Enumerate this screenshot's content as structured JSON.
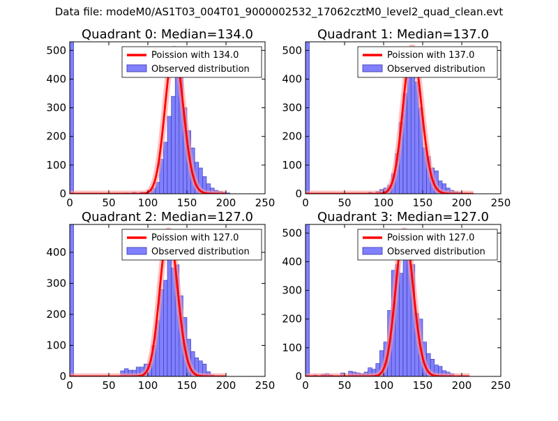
{
  "figure": {
    "suptitle": "Data file: modeM0/AS1T03_004T01_9000002532_17062cztM0_level2_quad_clean.evt"
  },
  "colors": {
    "bar_fill": "#8080ff",
    "bar_edge": "#3333aa",
    "poisson_line": "#ff0000",
    "poisson_fill": "#ff9a9a"
  },
  "chart_data": [
    {
      "type": "bar",
      "title": "Quadrant 0: Median=134.0",
      "xlabel": "",
      "ylabel": "",
      "xlim": [
        0,
        250
      ],
      "ylim": [
        0,
        530
      ],
      "xticks": [
        0,
        50,
        100,
        150,
        200,
        250
      ],
      "yticks": [
        0,
        100,
        200,
        300,
        400,
        500
      ],
      "bin_width": 5,
      "bins": [
        [
          0,
          530
        ],
        [
          70,
          3
        ],
        [
          80,
          5
        ],
        [
          90,
          5
        ],
        [
          95,
          3
        ],
        [
          100,
          12
        ],
        [
          105,
          20
        ],
        [
          110,
          40
        ],
        [
          115,
          120
        ],
        [
          120,
          180
        ],
        [
          125,
          270
        ],
        [
          130,
          340
        ],
        [
          135,
          450
        ],
        [
          140,
          440
        ],
        [
          145,
          300
        ],
        [
          150,
          220
        ],
        [
          155,
          160
        ],
        [
          160,
          110
        ],
        [
          165,
          90
        ],
        [
          170,
          60
        ],
        [
          175,
          35
        ],
        [
          180,
          20
        ],
        [
          185,
          12
        ],
        [
          190,
          8
        ],
        [
          195,
          5
        ],
        [
          200,
          3
        ]
      ],
      "poisson": {
        "mean": 134.0,
        "peak": 505,
        "xrange": [
          0,
          200
        ]
      },
      "legend": {
        "line": "Poission with 134.0",
        "bars": "Observed distribution",
        "location": "upper right"
      }
    },
    {
      "type": "bar",
      "title": "Quadrant 1: Median=137.0",
      "xlabel": "",
      "ylabel": "",
      "xlim": [
        0,
        250
      ],
      "ylim": [
        0,
        530
      ],
      "xticks": [
        0,
        50,
        100,
        150,
        200,
        250
      ],
      "yticks": [
        0,
        100,
        200,
        300,
        400,
        500
      ],
      "bin_width": 5,
      "bins": [
        [
          0,
          530
        ],
        [
          80,
          5
        ],
        [
          90,
          8
        ],
        [
          95,
          15
        ],
        [
          100,
          20
        ],
        [
          105,
          30
        ],
        [
          110,
          70
        ],
        [
          115,
          140
        ],
        [
          120,
          250
        ],
        [
          125,
          350
        ],
        [
          130,
          430
        ],
        [
          135,
          470
        ],
        [
          140,
          390
        ],
        [
          145,
          300
        ],
        [
          150,
          160
        ],
        [
          155,
          130
        ],
        [
          160,
          90
        ],
        [
          165,
          80
        ],
        [
          170,
          45
        ],
        [
          175,
          35
        ],
        [
          180,
          20
        ],
        [
          185,
          12
        ],
        [
          190,
          7
        ],
        [
          195,
          4
        ],
        [
          200,
          2
        ]
      ],
      "poisson": {
        "mean": 137.0,
        "peak": 510,
        "xrange": [
          0,
          215
        ]
      },
      "legend": {
        "line": "Poission with 137.0",
        "bars": "Observed distribution",
        "location": "upper right"
      }
    },
    {
      "type": "bar",
      "title": "Quadrant 2: Median=127.0",
      "xlabel": "",
      "ylabel": "",
      "xlim": [
        0,
        250
      ],
      "ylim": [
        0,
        490
      ],
      "xticks": [
        0,
        50,
        100,
        150,
        200,
        250
      ],
      "yticks": [
        0,
        100,
        200,
        300,
        400
      ],
      "bin_width": 5,
      "bins": [
        [
          0,
          490
        ],
        [
          65,
          18
        ],
        [
          70,
          25
        ],
        [
          75,
          20
        ],
        [
          80,
          20
        ],
        [
          85,
          30
        ],
        [
          90,
          30
        ],
        [
          95,
          40
        ],
        [
          100,
          40
        ],
        [
          105,
          100
        ],
        [
          110,
          180
        ],
        [
          115,
          280
        ],
        [
          120,
          310
        ],
        [
          125,
          470
        ],
        [
          130,
          350
        ],
        [
          135,
          360
        ],
        [
          140,
          260
        ],
        [
          145,
          190
        ],
        [
          150,
          120
        ],
        [
          155,
          80
        ],
        [
          160,
          60
        ],
        [
          165,
          50
        ],
        [
          170,
          40
        ],
        [
          175,
          15
        ],
        [
          180,
          5
        ]
      ],
      "poisson": {
        "mean": 127.0,
        "peak": 470,
        "xrange": [
          0,
          200
        ]
      },
      "legend": {
        "line": "Poission with 127.0",
        "bars": "Observed distribution",
        "location": "upper right"
      }
    },
    {
      "type": "bar",
      "title": "Quadrant 3: Median=127.0",
      "xlabel": "",
      "ylabel": "",
      "xlim": [
        0,
        250
      ],
      "ylim": [
        0,
        530
      ],
      "xticks": [
        0,
        50,
        100,
        150,
        200,
        250
      ],
      "yticks": [
        0,
        100,
        200,
        300,
        400,
        500
      ],
      "bin_width": 5,
      "bins": [
        [
          0,
          530
        ],
        [
          10,
          5
        ],
        [
          20,
          7
        ],
        [
          25,
          10
        ],
        [
          30,
          5
        ],
        [
          45,
          12
        ],
        [
          55,
          18
        ],
        [
          60,
          15
        ],
        [
          65,
          12
        ],
        [
          70,
          10
        ],
        [
          75,
          15
        ],
        [
          80,
          30
        ],
        [
          85,
          25
        ],
        [
          90,
          45
        ],
        [
          95,
          90
        ],
        [
          100,
          120
        ],
        [
          105,
          230
        ],
        [
          110,
          370
        ],
        [
          115,
          390
        ],
        [
          120,
          360
        ],
        [
          125,
          500
        ],
        [
          130,
          460
        ],
        [
          135,
          390
        ],
        [
          140,
          220
        ],
        [
          145,
          200
        ],
        [
          150,
          120
        ],
        [
          155,
          80
        ],
        [
          160,
          60
        ],
        [
          165,
          40
        ],
        [
          170,
          35
        ],
        [
          175,
          20
        ],
        [
          180,
          15
        ],
        [
          185,
          10
        ]
      ],
      "poisson": {
        "mean": 127.0,
        "peak": 508,
        "xrange": [
          0,
          210
        ]
      },
      "legend": {
        "line": "Poission with 127.0",
        "bars": "Observed distribution",
        "location": "upper right"
      }
    }
  ]
}
